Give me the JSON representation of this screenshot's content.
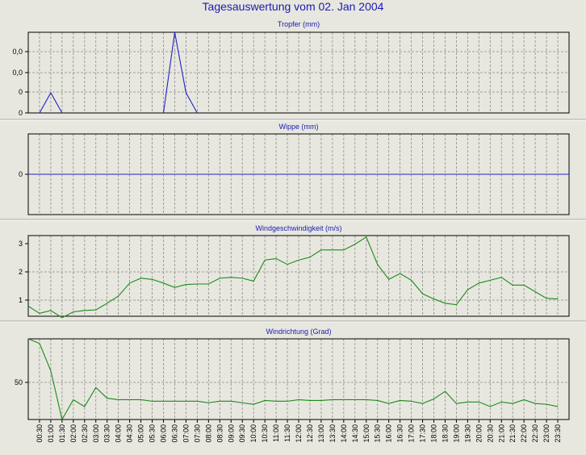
{
  "page": {
    "title": "Tagesauswertung vom 02. Jan 2004"
  },
  "colors": {
    "background": "#e7e7df",
    "title": "#1a1ab4",
    "blue_series": "#2020c8",
    "green_series": "#1a8a1a",
    "grid": "#8a8a8a",
    "frame": "#000000"
  },
  "x_ticks": [
    "00:30",
    "01:00",
    "01:30",
    "02:00",
    "02:30",
    "03:00",
    "03:30",
    "04:00",
    "04:30",
    "05:00",
    "05:30",
    "06:00",
    "06:30",
    "07:00",
    "07:30",
    "08:00",
    "08:30",
    "09:00",
    "09:30",
    "10:00",
    "10:30",
    "11:00",
    "11:30",
    "12:00",
    "12:30",
    "13:00",
    "13:30",
    "14:00",
    "14:30",
    "15:00",
    "15:30",
    "16:00",
    "16:30",
    "17:00",
    "17:30",
    "18:00",
    "18:30",
    "19:00",
    "19:30",
    "20:00",
    "20:30",
    "21:00",
    "21:30",
    "22:00",
    "22:30",
    "23:00",
    "23:30"
  ],
  "chart_data": [
    {
      "type": "line",
      "title": "Tropfer (mm)",
      "color": "blue",
      "y_tick_labels": [
        "0,0",
        "0,0",
        "0",
        "0"
      ],
      "grid": true,
      "x": [
        "00:00",
        "00:30",
        "01:00",
        "01:30",
        "02:00",
        "02:30",
        "03:00",
        "03:30",
        "04:00",
        "04:30",
        "05:00",
        "05:30",
        "06:00",
        "06:30",
        "07:00",
        "07:30",
        "08:00",
        "08:30",
        "09:00",
        "09:30",
        "10:00",
        "10:30",
        "11:00",
        "11:30",
        "12:00",
        "12:30",
        "13:00",
        "13:30",
        "14:00",
        "14:30",
        "15:00",
        "15:30",
        "16:00",
        "16:30",
        "17:00",
        "17:30",
        "18:00",
        "18:30",
        "19:00",
        "19:30",
        "20:00",
        "20:30",
        "21:00",
        "21:30",
        "22:00",
        "22:30",
        "23:00",
        "23:30"
      ],
      "values": [
        null,
        0,
        0.25,
        0,
        null,
        null,
        null,
        null,
        null,
        null,
        null,
        null,
        0,
        1,
        0.25,
        0,
        null,
        null,
        null,
        null,
        null,
        null,
        null,
        null,
        null,
        null,
        null,
        null,
        null,
        null,
        null,
        null,
        null,
        null,
        null,
        null,
        null,
        null,
        null,
        null,
        null,
        null,
        null,
        null,
        null,
        null,
        null,
        null
      ],
      "ylim": [
        0,
        1
      ]
    },
    {
      "type": "line",
      "title": "Wippe (mm)",
      "color": "blue",
      "y_tick_labels": [
        "0"
      ],
      "grid": true,
      "x": [
        "00:00",
        "23:59"
      ],
      "values": [
        0,
        0
      ],
      "ylim": [
        -1,
        1
      ]
    },
    {
      "type": "line",
      "title": "Windgeschwindigkeit (m/s)",
      "color": "green",
      "y_tick_labels": [
        "1",
        "2",
        "3"
      ],
      "grid": true,
      "x": [
        "00:00",
        "00:30",
        "01:00",
        "01:30",
        "02:00",
        "02:30",
        "03:00",
        "03:30",
        "04:00",
        "04:30",
        "05:00",
        "05:30",
        "06:00",
        "06:30",
        "07:00",
        "07:30",
        "08:00",
        "08:30",
        "09:00",
        "09:30",
        "10:00",
        "10:30",
        "11:00",
        "11:30",
        "12:00",
        "12:30",
        "13:00",
        "13:30",
        "14:00",
        "14:30",
        "15:00",
        "15:30",
        "16:00",
        "16:30",
        "17:00",
        "17:30",
        "18:00",
        "18:30",
        "19:00",
        "19:30",
        "20:00",
        "20:30",
        "21:00",
        "21:30",
        "22:00",
        "22:30",
        "23:00",
        "23:30"
      ],
      "values": [
        0.85,
        0.6,
        0.7,
        0.45,
        0.65,
        0.7,
        0.72,
        0.95,
        1.2,
        1.65,
        1.82,
        1.78,
        1.65,
        1.5,
        1.6,
        1.62,
        1.62,
        1.82,
        1.85,
        1.82,
        1.72,
        2.45,
        2.5,
        2.3,
        2.45,
        2.55,
        2.8,
        2.8,
        2.8,
        3.0,
        3.25,
        2.3,
        1.78,
        1.98,
        1.75,
        1.28,
        1.1,
        0.95,
        0.9,
        1.42,
        1.65,
        1.75,
        1.85,
        1.58,
        1.58,
        1.35,
        1.12,
        1.1
      ],
      "ylim": [
        0.5,
        3.3
      ]
    },
    {
      "type": "line",
      "title": "Windrichtung (Grad)",
      "color": "green",
      "y_tick_labels": [
        "50"
      ],
      "grid": true,
      "x": [
        "00:00",
        "00:30",
        "01:00",
        "01:30",
        "02:00",
        "02:30",
        "03:00",
        "03:30",
        "04:00",
        "04:30",
        "05:00",
        "05:30",
        "06:00",
        "06:30",
        "07:00",
        "07:30",
        "08:00",
        "08:30",
        "09:00",
        "09:30",
        "10:00",
        "10:30",
        "11:00",
        "11:30",
        "12:00",
        "12:30",
        "13:00",
        "13:30",
        "14:00",
        "14:30",
        "15:00",
        "15:30",
        "16:00",
        "16:30",
        "17:00",
        "17:30",
        "18:00",
        "18:30",
        "19:00",
        "19:30",
        "20:00",
        "20:30",
        "21:00",
        "21:30",
        "22:00",
        "22:30",
        "23:00",
        "23:30"
      ],
      "values": [
        106,
        100,
        64,
        0,
        26,
        17,
        42,
        28,
        26,
        26,
        26,
        24,
        24,
        24,
        24,
        24,
        22,
        24,
        24,
        22,
        20,
        25,
        24,
        24,
        26,
        25,
        25,
        26,
        26,
        26,
        26,
        25,
        21,
        25,
        24,
        21,
        27,
        37,
        21,
        23,
        23,
        17,
        23,
        21,
        26,
        21,
        20,
        17
      ],
      "ylim": [
        0,
        106
      ]
    }
  ]
}
